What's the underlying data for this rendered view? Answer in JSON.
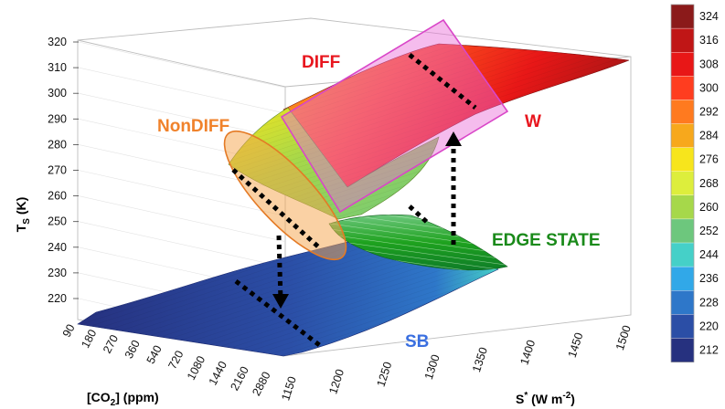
{
  "chart_data": {
    "type": "surface3d",
    "title": "",
    "z_axis": {
      "title": "T",
      "title_sub": "S",
      "unit": " (K)",
      "ticks": [
        "320",
        "310",
        "300",
        "290",
        "280",
        "270",
        "260",
        "250",
        "240",
        "230",
        "220"
      ],
      "range": [
        215,
        325
      ]
    },
    "co2_axis": {
      "title_prefix": "[CO",
      "title_sub": "2",
      "title_suffix": "] (ppm)",
      "ticks": [
        "90",
        "180",
        "270",
        "360",
        "540",
        "720",
        "1080",
        "1440",
        "2160",
        "2880"
      ]
    },
    "s_axis": {
      "title_prefix": "S",
      "title_sup": "*",
      "title_mid": " (W m",
      "title_sup2": "-2",
      "title_suffix": ")",
      "ticks": [
        "1150",
        "1200",
        "1250",
        "1300",
        "1350",
        "1400",
        "1450",
        "1500"
      ],
      "range": [
        1150,
        1500
      ]
    },
    "colorbar": {
      "values": [
        324,
        316,
        308,
        300,
        292,
        284,
        276,
        268,
        260,
        252,
        244,
        236,
        228,
        220,
        212
      ],
      "colors": [
        "#8b1a1a",
        "#c01616",
        "#e81717",
        "#ff3d1f",
        "#ff7a1f",
        "#f7a81c",
        "#f7e51c",
        "#ddee3c",
        "#a6d84a",
        "#6dc77d",
        "#45d0c8",
        "#31a8e8",
        "#2e77c9",
        "#2b4ea6",
        "#26317f"
      ]
    },
    "regions": [
      {
        "label": "DIFF",
        "color": "#e8161e"
      },
      {
        "label": "NonDIFF",
        "color": "#f0822b"
      },
      {
        "label": "W",
        "color": "#e8161e"
      },
      {
        "label": "EDGE STATE",
        "color": "#1a8a1a"
      },
      {
        "label": "SB",
        "color": "#3a6fe0"
      }
    ],
    "grid": true
  }
}
